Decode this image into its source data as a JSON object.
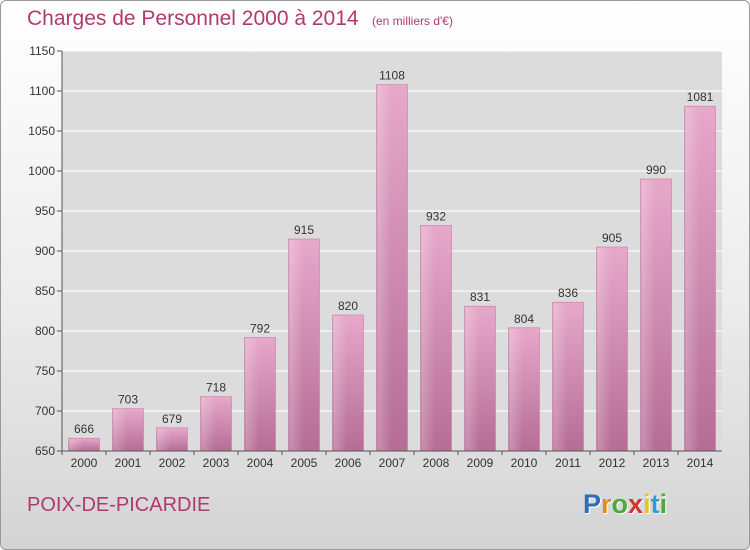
{
  "header": {
    "title": "Charges de Personnel 2000 à 2014",
    "subtitle": "(en milliers d'€)"
  },
  "footer": {
    "commune": "POIX-DE-PICARDIE",
    "logo_letters": [
      "P",
      "r",
      "o",
      "x",
      "i",
      "t",
      "i"
    ],
    "logo_colors": [
      "#2f6fb5",
      "#e8891c",
      "#4caa3c",
      "#d6312d",
      "#e8c41c",
      "#2f9ad6",
      "#4caa3c"
    ]
  },
  "chart_data": {
    "type": "bar",
    "title": "Charges de Personnel 2000 à 2014",
    "subtitle": "(en milliers d'€)",
    "categories": [
      "2000",
      "2001",
      "2002",
      "2003",
      "2004",
      "2005",
      "2006",
      "2007",
      "2008",
      "2009",
      "2010",
      "2011",
      "2012",
      "2013",
      "2014"
    ],
    "values": [
      666,
      703,
      679,
      718,
      792,
      915,
      820,
      1108,
      932,
      831,
      804,
      836,
      905,
      990,
      1081
    ],
    "ylim": [
      650,
      1150
    ],
    "yticks": [
      650,
      700,
      750,
      800,
      850,
      900,
      950,
      1000,
      1050,
      1100,
      1150
    ],
    "grid": true,
    "bar_color": "#d98cb3"
  }
}
